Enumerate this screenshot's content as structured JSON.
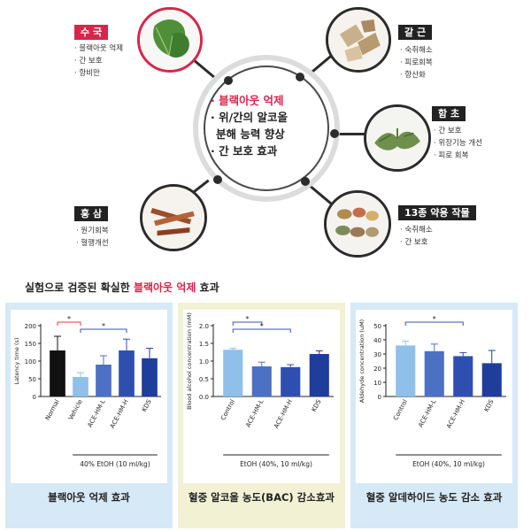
{
  "infographic": {
    "center": [
      "· 블랙아웃 억제",
      "· 위/간의 알코올",
      "분해 능력 향상",
      "· 간 보호 효과"
    ],
    "herbs": {
      "suguk": {
        "label": "수 국",
        "color": "#d7264a",
        "items": [
          "· 블랙아웃 억제",
          "· 간 보호",
          "· 항비만"
        ],
        "icon": "hydrangea-leaf"
      },
      "galgeun": {
        "label": "갈 근",
        "color": "#222222",
        "items": [
          "· 숙취해소",
          "· 피로회복",
          "· 항산화"
        ],
        "icon": "kudzu-root"
      },
      "hamcho": {
        "label": "함 초",
        "color": "#222222",
        "items": [
          "· 간 보호",
          "· 위장기능 개선",
          "· 피로 회복"
        ],
        "icon": "glasswort"
      },
      "hongsam": {
        "label": "홍 삼",
        "color": "#222222",
        "items": [
          "· 원기회복",
          "· 혈행개선"
        ],
        "icon": "red-ginseng"
      },
      "yakyong": {
        "label": "13종 약용 작물",
        "color": "#222222",
        "items": [
          "· 숙취해소",
          "· 간 보호"
        ],
        "icon": "herbal-powders"
      }
    }
  },
  "headline": {
    "before": "실험으로 검증된 확실한 ",
    "highlight": "블랙아웃 억제",
    "after": " 효과"
  },
  "panels": [
    {
      "caption": "블랙아웃 억제 효과",
      "background": "#d6e9f6"
    },
    {
      "caption": "혈중 알코올 농도(BAC) 감소효과",
      "background": "#f2f1d4"
    },
    {
      "caption": "혈중 알데하이드 농도 감소 효과",
      "background": "#d6e9f6"
    }
  ],
  "chart_data": [
    {
      "type": "bar",
      "categories": [
        "Normal",
        "Vehicle",
        "ACE-HM-L",
        "ACE-HM-H",
        "KDS"
      ],
      "values": [
        130,
        55,
        90,
        130,
        108
      ],
      "errors": [
        40,
        12,
        25,
        32,
        28
      ],
      "colors": [
        "#111111",
        "#8fc0ea",
        "#4c70c4",
        "#2f4fb0",
        "#1f3d9a"
      ],
      "ylabel": "Latency time (s)",
      "ylim": [
        0,
        200
      ],
      "yticks": [
        0,
        50,
        100,
        150,
        200
      ],
      "xlabel": "40% EtOH (10 ml/kg)",
      "significance": [
        {
          "from": 0,
          "to": 1,
          "label": "*",
          "color": "#e53935"
        },
        {
          "from": 1,
          "to": 3,
          "label": "*",
          "color": "#3a4ec4"
        }
      ]
    },
    {
      "type": "bar",
      "categories": [
        "Control",
        "ACE-HM-L",
        "ACE-HM-H",
        "KDS"
      ],
      "values": [
        1.32,
        0.85,
        0.83,
        1.2
      ],
      "errors": [
        0.04,
        0.12,
        0.07,
        0.09
      ],
      "colors": [
        "#8fc0ea",
        "#4c70c4",
        "#2f4fb0",
        "#1f3d9a"
      ],
      "ylabel": "Blood alcohol concentration (mM)",
      "ylim": [
        0,
        2.0
      ],
      "yticks": [
        0.0,
        0.5,
        1.0,
        1.5,
        2.0
      ],
      "xlabel": "EtOH (40%, 10 ml/kg)",
      "significance": [
        {
          "from": 0,
          "to": 1,
          "label": "*",
          "color": "#3a4ec4"
        },
        {
          "from": 0,
          "to": 2,
          "label": "*",
          "color": "#3a4ec4"
        }
      ]
    },
    {
      "type": "bar",
      "categories": [
        "Control",
        "ACE-HM-L",
        "ACE-HM-H",
        "KDS"
      ],
      "values": [
        36,
        32,
        28.5,
        23.5
      ],
      "errors": [
        3,
        5,
        2.5,
        9
      ],
      "colors": [
        "#8fc0ea",
        "#4c70c4",
        "#2f4fb0",
        "#1f3d9a"
      ],
      "ylabel": "Aldehyde concentration (uM)",
      "ylim": [
        0,
        50
      ],
      "yticks": [
        0,
        10,
        20,
        30,
        40,
        50
      ],
      "xlabel": "EtOH (40%, 10 ml/kg)",
      "significance": [
        {
          "from": 0,
          "to": 2,
          "label": "*",
          "color": "#3a4ec4"
        }
      ]
    }
  ]
}
